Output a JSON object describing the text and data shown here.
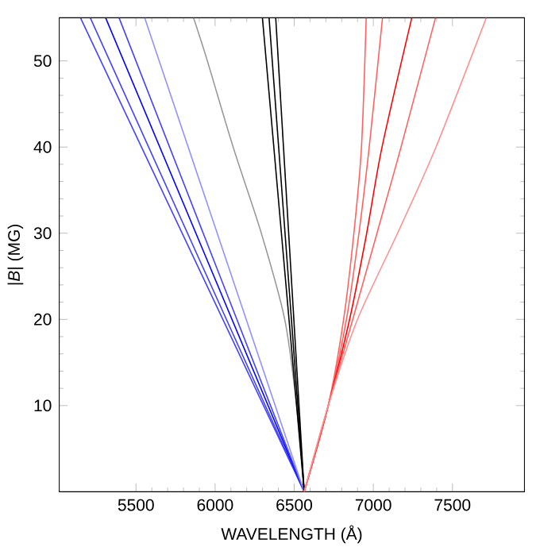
{
  "chart_data": {
    "type": "line",
    "xlabel": "WAVELENGTH (Å)",
    "ylabel": "|*B*|   (MG)",
    "xlim": [
      5015,
      7955
    ],
    "ylim": [
      0,
      55
    ],
    "xticks": [
      5500,
      6000,
      6500,
      7000,
      7500
    ],
    "yticks": [
      10,
      20,
      30,
      40,
      50
    ],
    "grid": false,
    "marker": "none",
    "line_style": "solid",
    "series": [
      {
        "color": "#4040ff",
        "x": [
          6563,
          5149
        ],
        "values": [
          0,
          55
        ]
      },
      {
        "color": "#4040ff",
        "x": [
          6563,
          5211
        ],
        "values": [
          0,
          55
        ]
      },
      {
        "color": "#0000ff",
        "x": [
          6563,
          5308
        ],
        "values": [
          0,
          55
        ]
      },
      {
        "color": "#4040ff",
        "x": [
          6563,
          5393
        ],
        "values": [
          0,
          55
        ]
      },
      {
        "color": "#9090ff",
        "x": [
          6563,
          5555
        ],
        "values": [
          0,
          55
        ]
      },
      {
        "color": "#999999",
        "x": [
          6563,
          6515,
          6440,
          6292,
          6114,
          5951,
          5864
        ],
        "values": [
          0,
          10,
          20,
          30,
          40,
          50,
          55
        ]
      },
      {
        "color": "#000000",
        "x": [
          6563,
          6299
        ],
        "values": [
          0,
          55
        ]
      },
      {
        "color": "#000000",
        "x": [
          6563,
          6341
        ],
        "values": [
          0,
          55
        ]
      },
      {
        "color": "#000000",
        "x": [
          6563,
          6383
        ],
        "values": [
          0,
          55
        ]
      },
      {
        "color": "#ff6060",
        "x": [
          6563,
          6715,
          6812,
          6877,
          6925,
          6955
        ],
        "values": [
          0,
          10,
          20,
          30,
          40,
          55
        ]
      },
      {
        "color": "#ff6060",
        "x": [
          6563,
          6715,
          6830,
          6909,
          6974,
          7058
        ],
        "values": [
          0,
          10,
          20,
          30,
          40,
          55
        ]
      },
      {
        "color": "#ff0000",
        "x": [
          6563,
          6715,
          6850,
          6958,
          7055,
          7243
        ],
        "values": [
          0,
          10,
          20,
          30,
          40,
          55
        ]
      },
      {
        "color": "#ff6060",
        "x": [
          6563,
          6715,
          6870,
          7023,
          7175,
          7393
        ],
        "values": [
          0,
          10,
          20,
          30,
          40,
          55
        ]
      },
      {
        "color": "#ff9090",
        "x": [
          6563,
          6715,
          6900,
          7153,
          7396,
          7714
        ],
        "values": [
          0,
          10,
          20,
          30,
          40,
          55
        ]
      }
    ]
  }
}
